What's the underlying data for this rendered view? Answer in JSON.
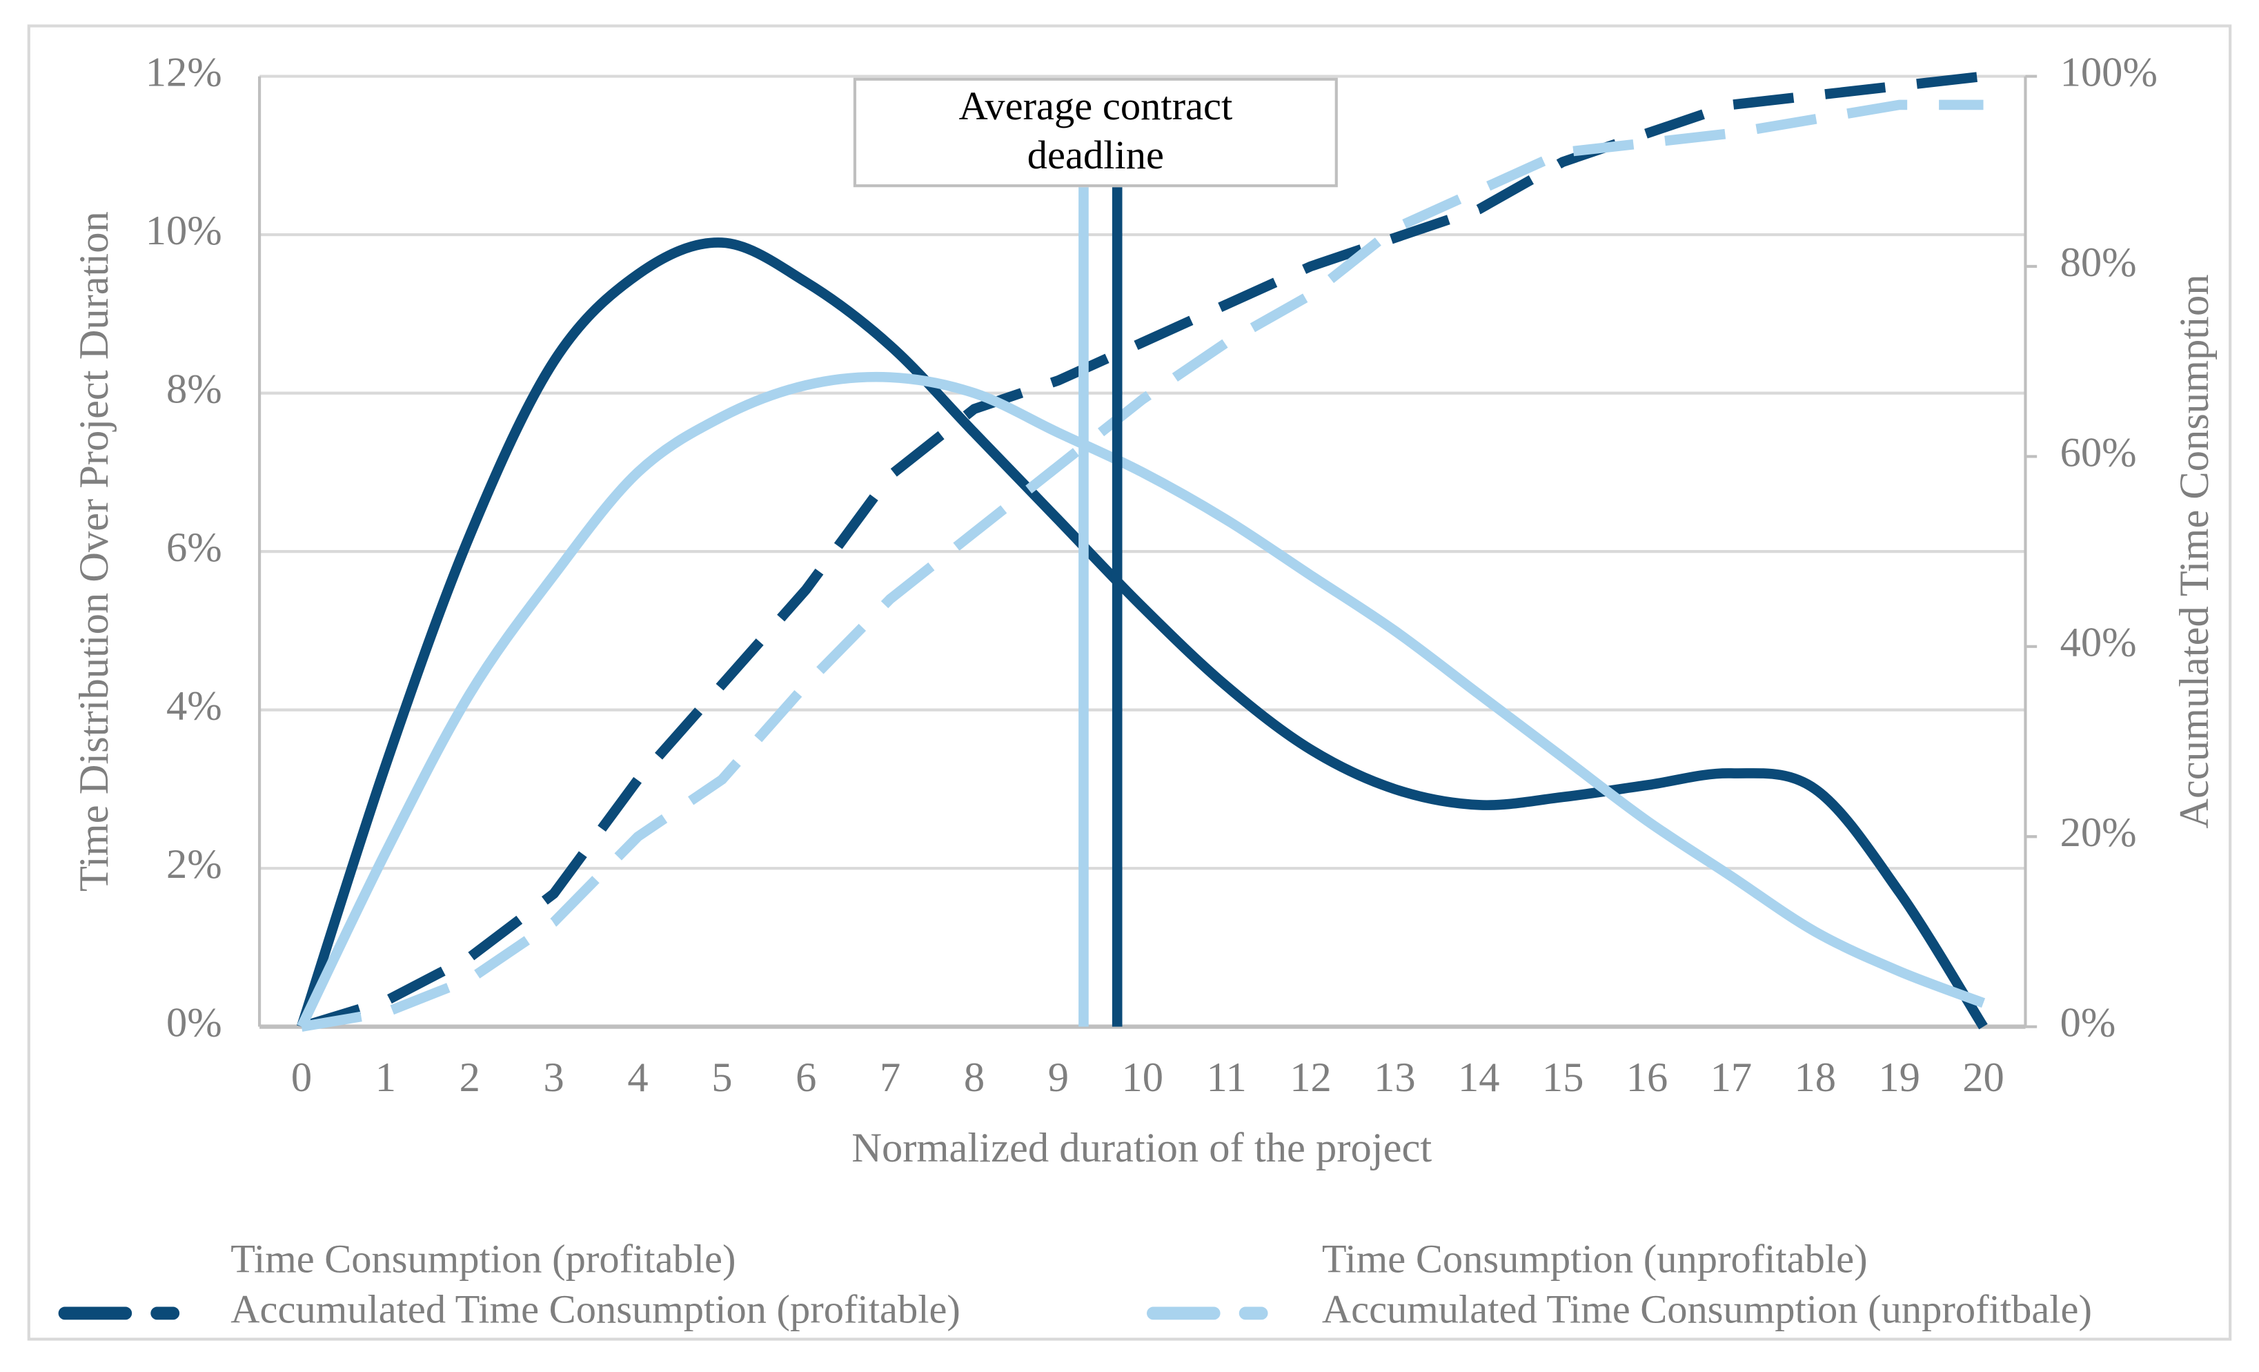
{
  "chart_data": {
    "type": "line",
    "annotation": "Average contract deadline",
    "x_label": "Normalized duration of the project",
    "y_label": "Time Distribution Over Project Duration",
    "y2_label": "Accumulated Time Consumption",
    "x": [
      0,
      1,
      2,
      3,
      4,
      5,
      6,
      7,
      8,
      9,
      10,
      11,
      12,
      13,
      14,
      15,
      16,
      17,
      18,
      19,
      20
    ],
    "xlim": [
      -0.5,
      20.5
    ],
    "xticks": [
      0,
      1,
      2,
      3,
      4,
      5,
      6,
      7,
      8,
      9,
      10,
      11,
      12,
      13,
      14,
      15,
      16,
      17,
      18,
      19,
      20
    ],
    "ylim": [
      0,
      12
    ],
    "yticks": [
      {
        "value": 0,
        "label": "0%"
      },
      {
        "value": 2,
        "label": "2%"
      },
      {
        "value": 4,
        "label": "4%"
      },
      {
        "value": 6,
        "label": "6%"
      },
      {
        "value": 8,
        "label": "8%"
      },
      {
        "value": 10,
        "label": "10%"
      },
      {
        "value": 12,
        "label": "12%"
      }
    ],
    "y2lim": [
      0,
      100
    ],
    "y2ticks": [
      {
        "value": 0,
        "label": "0%"
      },
      {
        "value": 20,
        "label": "20%"
      },
      {
        "value": 40,
        "label": "40%"
      },
      {
        "value": 60,
        "label": "60%"
      },
      {
        "value": 80,
        "label": "80%"
      },
      {
        "value": 100,
        "label": "100%"
      }
    ],
    "grid": true,
    "legend": "bottom",
    "series": [
      {
        "name": "Time Consumption (profitable)",
        "color": "#0b4a78",
        "dash": false,
        "smooth": true,
        "values": [
          0,
          3.3,
          6.2,
          8.4,
          9.5,
          9.9,
          9.4,
          8.6,
          7.5,
          6.4,
          5.3,
          4.3,
          3.5,
          3.0,
          2.8,
          2.9,
          3.05,
          3.2,
          3.0,
          1.7,
          0
        ]
      },
      {
        "name": "Accumulated Time Consumption (profitable)",
        "color": "#0b4a78",
        "dash": true,
        "axis": "y2",
        "smooth": false,
        "values": [
          0,
          2.7,
          7.3,
          14,
          26,
          36,
          46,
          58,
          65,
          68,
          72,
          76,
          80,
          83,
          86,
          91,
          94,
          97,
          98,
          99,
          100
        ]
      },
      {
        "name": "Time Consumption (unprofitable)",
        "color": "#a9d3ee",
        "dash": false,
        "smooth": true,
        "values": [
          0,
          2.2,
          4.2,
          5.7,
          7.0,
          7.7,
          8.1,
          8.2,
          8.0,
          7.5,
          7.0,
          6.4,
          5.7,
          5.0,
          4.2,
          3.4,
          2.6,
          1.9,
          1.2,
          0.7,
          0.3
        ]
      },
      {
        "name": "Accumulated Time Consumption (unprofitbale)",
        "color": "#a9d3ee",
        "dash": true,
        "axis": "y2",
        "smooth": false,
        "values": [
          0,
          1.5,
          5,
          11,
          20,
          26,
          36,
          45,
          52,
          59,
          66,
          72,
          77,
          84,
          88,
          92,
          93,
          94,
          95.5,
          97,
          97
        ]
      }
    ],
    "vlines": [
      {
        "x": 9.3,
        "color": "#a9d3ee"
      },
      {
        "x": 9.7,
        "color": "#0b4a78"
      }
    ]
  }
}
